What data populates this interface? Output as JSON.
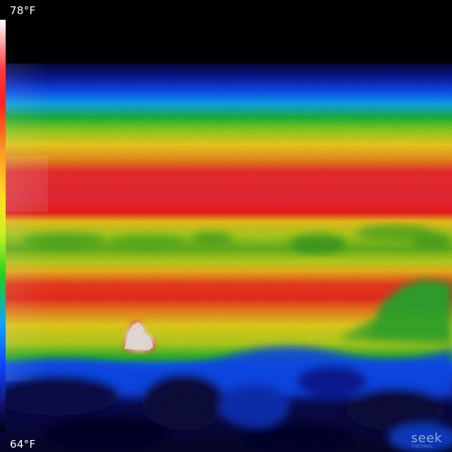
{
  "scale": {
    "max_label": "78°F",
    "min_label": "64°F"
  },
  "brand": {
    "name": "seek",
    "sub": "THERMAL"
  },
  "palette": {
    "white": "#ffffff",
    "red": "#ff2020",
    "orange": "#ff8a20",
    "yellow": "#ffe020",
    "green": "#20c020",
    "blue": "#1040ff",
    "navy": "#0a0a50",
    "black": "#000000"
  }
}
